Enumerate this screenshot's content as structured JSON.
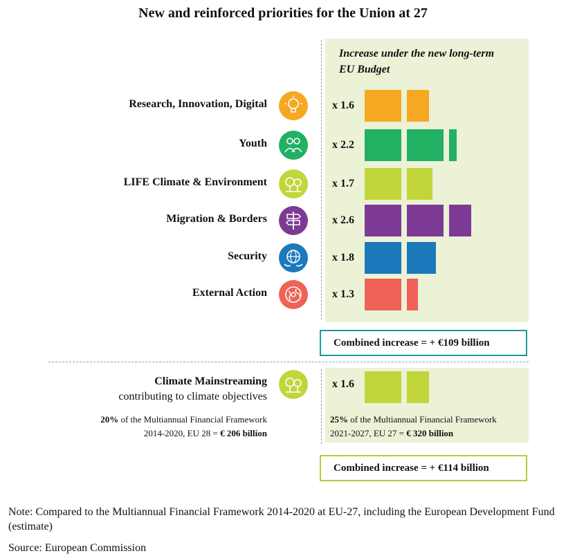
{
  "chart_data": {
    "type": "bar",
    "title": "New and reinforced priorities for the Union at 27",
    "value_header": "Increase under the new long-term EU Budget",
    "categories": [
      "Research, Innovation, Digital",
      "Youth",
      "LIFE Climate & Environment",
      "Migration & Borders",
      "Security",
      "External Action"
    ],
    "values": [
      1.6,
      2.2,
      1.7,
      2.6,
      1.8,
      1.3
    ],
    "value_labels": [
      "x 1.6",
      "x 2.2",
      "x 1.7",
      "x 2.6",
      "x 1.8",
      "x 1.3"
    ],
    "colors": [
      "#f7a823",
      "#22b063",
      "#c2d53a",
      "#7c3a95",
      "#1b79bc",
      "#ef6258"
    ],
    "icons": [
      "lightbulb-icon",
      "people-icon",
      "trees-icon",
      "signpost-icon",
      "globe-hands-icon",
      "globe-icon"
    ],
    "combined_increase_1": "Combined increase = + €109 billion",
    "climate": {
      "label": "Climate Mainstreaming",
      "sublabel": "contributing to climate objectives",
      "value": 1.6,
      "value_label": "x 1.6",
      "color": "#c2d53a",
      "left_line1_bold": "20%",
      "left_line1_rest": " of the Multiannual Financial Framework",
      "left_line2_rest": "2014-2020, EU 28 = ",
      "left_line2_bold": "€ 206 billion",
      "right_line1_bold": "25%",
      "right_line1_rest": " of the Multiannual Financial Framework",
      "right_line2_rest": "2021-2027, EU 27 = ",
      "right_line2_bold": "€ 320 billion"
    },
    "combined_increase_2": "Combined increase = + €114 billion"
  },
  "note": "Note: Compared to the Multiannual Financial Framework 2014-2020 at EU-27, including the European Development Fund (estimate)",
  "source": "Source: European Commission"
}
